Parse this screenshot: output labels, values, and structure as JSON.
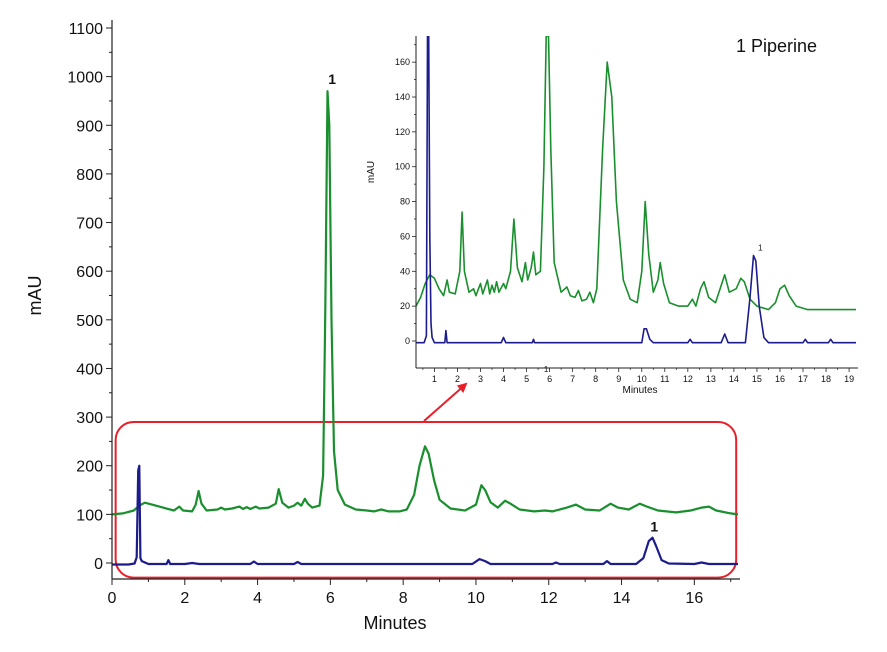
{
  "legend_note": "1 Piperine",
  "chart_data": [
    {
      "type": "line",
      "panel": "main",
      "xlabel": "Minutes",
      "ylabel": "mAU",
      "xlim": [
        0,
        17.2
      ],
      "ylim": [
        -20,
        1100
      ],
      "xticks": [
        0,
        2,
        4,
        6,
        8,
        10,
        12,
        14,
        16
      ],
      "yticks": [
        0,
        100,
        200,
        300,
        400,
        500,
        600,
        700,
        800,
        900,
        1000,
        1100
      ],
      "grid": false,
      "colors": {
        "green": "#1a8f2e",
        "blue": "#1c1c8c",
        "highlight": "#e8202a"
      },
      "highlight_box": {
        "x_range": [
          0.1,
          17.15
        ],
        "y_range": [
          -30,
          290
        ]
      },
      "series": [
        {
          "color": "green",
          "points": [
            [
              0,
              100
            ],
            [
              0.3,
              102
            ],
            [
              0.6,
              108
            ],
            [
              0.75,
              118
            ],
            [
              0.9,
              124
            ],
            [
              1.1,
              120
            ],
            [
              1.4,
              114
            ],
            [
              1.7,
              108
            ],
            [
              1.85,
              116
            ],
            [
              1.95,
              108
            ],
            [
              2.2,
              106
            ],
            [
              2.3,
              120
            ],
            [
              2.38,
              148
            ],
            [
              2.46,
              122
            ],
            [
              2.6,
              108
            ],
            [
              2.9,
              110
            ],
            [
              3.0,
              114
            ],
            [
              3.1,
              110
            ],
            [
              3.3,
              112
            ],
            [
              3.5,
              116
            ],
            [
              3.6,
              111
            ],
            [
              3.7,
              115
            ],
            [
              3.8,
              111
            ],
            [
              3.95,
              116
            ],
            [
              4.05,
              112
            ],
            [
              4.3,
              114
            ],
            [
              4.5,
              122
            ],
            [
              4.58,
              152
            ],
            [
              4.68,
              124
            ],
            [
              4.85,
              114
            ],
            [
              5.0,
              118
            ],
            [
              5.1,
              124
            ],
            [
              5.2,
              118
            ],
            [
              5.3,
              132
            ],
            [
              5.38,
              122
            ],
            [
              5.5,
              114
            ],
            [
              5.7,
              118
            ],
            [
              5.8,
              180
            ],
            [
              5.86,
              520
            ],
            [
              5.92,
              970
            ],
            [
              5.97,
              900
            ],
            [
              6.03,
              500
            ],
            [
              6.1,
              230
            ],
            [
              6.2,
              150
            ],
            [
              6.4,
              120
            ],
            [
              6.7,
              110
            ],
            [
              7.0,
              108
            ],
            [
              7.2,
              106
            ],
            [
              7.4,
              110
            ],
            [
              7.6,
              106
            ],
            [
              7.9,
              106
            ],
            [
              8.1,
              110
            ],
            [
              8.3,
              140
            ],
            [
              8.45,
              200
            ],
            [
              8.6,
              240
            ],
            [
              8.7,
              225
            ],
            [
              8.85,
              170
            ],
            [
              9.0,
              130
            ],
            [
              9.3,
              112
            ],
            [
              9.7,
              108
            ],
            [
              10.0,
              120
            ],
            [
              10.15,
              160
            ],
            [
              10.25,
              150
            ],
            [
              10.4,
              125
            ],
            [
              10.6,
              114
            ],
            [
              10.8,
              128
            ],
            [
              10.95,
              122
            ],
            [
              11.2,
              110
            ],
            [
              11.6,
              106
            ],
            [
              11.9,
              108
            ],
            [
              12.1,
              106
            ],
            [
              12.5,
              114
            ],
            [
              12.75,
              120
            ],
            [
              13.0,
              110
            ],
            [
              13.4,
              108
            ],
            [
              13.7,
              122
            ],
            [
              13.9,
              114
            ],
            [
              14.2,
              110
            ],
            [
              14.5,
              122
            ],
            [
              14.7,
              116
            ],
            [
              15.0,
              108
            ],
            [
              15.5,
              104
            ],
            [
              15.9,
              108
            ],
            [
              16.2,
              114
            ],
            [
              16.4,
              116
            ],
            [
              16.6,
              108
            ],
            [
              17.0,
              102
            ],
            [
              17.2,
              100
            ]
          ]
        },
        {
          "color": "blue",
          "points": [
            [
              0,
              -3
            ],
            [
              0.45,
              -3
            ],
            [
              0.62,
              -1
            ],
            [
              0.68,
              12
            ],
            [
              0.72,
              190
            ],
            [
              0.75,
              200
            ],
            [
              0.78,
              10
            ],
            [
              0.82,
              4
            ],
            [
              1.0,
              -2
            ],
            [
              1.5,
              -2
            ],
            [
              1.55,
              6
            ],
            [
              1.6,
              -2
            ],
            [
              2.0,
              -2
            ],
            [
              2.2,
              0
            ],
            [
              2.4,
              -2
            ],
            [
              3.8,
              -2
            ],
            [
              3.9,
              3
            ],
            [
              4.0,
              -2
            ],
            [
              5.0,
              -2
            ],
            [
              5.1,
              2
            ],
            [
              5.2,
              -2
            ],
            [
              9.9,
              -2
            ],
            [
              10.1,
              8
            ],
            [
              10.25,
              4
            ],
            [
              10.4,
              -2
            ],
            [
              12.1,
              -2
            ],
            [
              12.2,
              1
            ],
            [
              12.3,
              -2
            ],
            [
              13.5,
              -2
            ],
            [
              13.6,
              4
            ],
            [
              13.7,
              -2
            ],
            [
              14.4,
              -2
            ],
            [
              14.6,
              10
            ],
            [
              14.75,
              45
            ],
            [
              14.85,
              52
            ],
            [
              14.95,
              35
            ],
            [
              15.1,
              6
            ],
            [
              15.3,
              -1
            ],
            [
              16.0,
              -2
            ],
            [
              16.2,
              1
            ],
            [
              16.4,
              -2
            ],
            [
              17.2,
              -2
            ]
          ]
        }
      ],
      "annotations": [
        {
          "text": "1",
          "x": 6.05,
          "y": 985
        },
        {
          "text": "1",
          "x": 14.9,
          "y": 65
        }
      ]
    },
    {
      "type": "line",
      "panel": "inset",
      "xlabel": "Minutes",
      "ylabel": "mAU",
      "xlim": [
        0.2,
        19.3
      ],
      "ylim": [
        -12,
        175
      ],
      "xticks": [
        1,
        2,
        3,
        4,
        5,
        6,
        7,
        8,
        9,
        10,
        11,
        12,
        13,
        14,
        15,
        16,
        17,
        18,
        19
      ],
      "yticks": [
        0,
        20,
        40,
        60,
        80,
        100,
        120,
        140,
        160
      ],
      "grid": false,
      "series": [
        {
          "color": "green",
          "points": [
            [
              0.2,
              20
            ],
            [
              0.4,
              25
            ],
            [
              0.6,
              33
            ],
            [
              0.8,
              38
            ],
            [
              1.0,
              36
            ],
            [
              1.2,
              30
            ],
            [
              1.4,
              26
            ],
            [
              1.55,
              35
            ],
            [
              1.65,
              28
            ],
            [
              1.9,
              27
            ],
            [
              2.1,
              40
            ],
            [
              2.2,
              74
            ],
            [
              2.3,
              40
            ],
            [
              2.5,
              28
            ],
            [
              2.7,
              30
            ],
            [
              2.8,
              26
            ],
            [
              3.0,
              33
            ],
            [
              3.1,
              27
            ],
            [
              3.3,
              35
            ],
            [
              3.4,
              27
            ],
            [
              3.5,
              32
            ],
            [
              3.6,
              28
            ],
            [
              3.7,
              34
            ],
            [
              3.8,
              28
            ],
            [
              4.0,
              33
            ],
            [
              4.1,
              30
            ],
            [
              4.3,
              40
            ],
            [
              4.45,
              70
            ],
            [
              4.6,
              42
            ],
            [
              4.8,
              34
            ],
            [
              4.95,
              45
            ],
            [
              5.05,
              35
            ],
            [
              5.2,
              42
            ],
            [
              5.3,
              51
            ],
            [
              5.4,
              38
            ],
            [
              5.6,
              40
            ],
            [
              5.75,
              100
            ],
            [
              5.85,
              175
            ],
            [
              5.95,
              175
            ],
            [
              6.05,
              110
            ],
            [
              6.2,
              45
            ],
            [
              6.5,
              28
            ],
            [
              6.75,
              31
            ],
            [
              6.9,
              26
            ],
            [
              7.1,
              25
            ],
            [
              7.25,
              29
            ],
            [
              7.4,
              23
            ],
            [
              7.6,
              24
            ],
            [
              7.75,
              28
            ],
            [
              7.9,
              22
            ],
            [
              8.05,
              30
            ],
            [
              8.3,
              110
            ],
            [
              8.5,
              160
            ],
            [
              8.7,
              140
            ],
            [
              8.9,
              80
            ],
            [
              9.2,
              35
            ],
            [
              9.5,
              24
            ],
            [
              9.8,
              22
            ],
            [
              10.0,
              40
            ],
            [
              10.15,
              80
            ],
            [
              10.3,
              50
            ],
            [
              10.5,
              28
            ],
            [
              10.7,
              35
            ],
            [
              10.8,
              45
            ],
            [
              10.95,
              33
            ],
            [
              11.2,
              22
            ],
            [
              11.6,
              20
            ],
            [
              12.0,
              20
            ],
            [
              12.2,
              24
            ],
            [
              12.35,
              20
            ],
            [
              12.55,
              30
            ],
            [
              12.7,
              34
            ],
            [
              12.9,
              25
            ],
            [
              13.2,
              22
            ],
            [
              13.5,
              34
            ],
            [
              13.6,
              38
            ],
            [
              13.8,
              28
            ],
            [
              14.1,
              30
            ],
            [
              14.3,
              36
            ],
            [
              14.45,
              34
            ],
            [
              14.7,
              24
            ],
            [
              15.0,
              20
            ],
            [
              15.5,
              18
            ],
            [
              15.8,
              22
            ],
            [
              16.0,
              30
            ],
            [
              16.2,
              32
            ],
            [
              16.4,
              26
            ],
            [
              16.7,
              20
            ],
            [
              17.2,
              18
            ],
            [
              18.0,
              18
            ],
            [
              19.3,
              18
            ]
          ]
        },
        {
          "color": "blue",
          "points": [
            [
              0.2,
              -1
            ],
            [
              0.55,
              -1
            ],
            [
              0.65,
              3
            ],
            [
              0.7,
              175
            ],
            [
              0.75,
              175
            ],
            [
              0.8,
              60
            ],
            [
              0.85,
              10
            ],
            [
              0.9,
              2
            ],
            [
              1.0,
              -1
            ],
            [
              1.45,
              -1
            ],
            [
              1.5,
              6
            ],
            [
              1.55,
              -1
            ],
            [
              3.9,
              -1
            ],
            [
              4.0,
              2
            ],
            [
              4.1,
              -1
            ],
            [
              5.25,
              -1
            ],
            [
              5.3,
              1
            ],
            [
              5.35,
              -1
            ],
            [
              10.0,
              -1
            ],
            [
              10.1,
              7
            ],
            [
              10.2,
              7
            ],
            [
              10.35,
              1
            ],
            [
              10.5,
              -1
            ],
            [
              12.0,
              -1
            ],
            [
              12.1,
              1
            ],
            [
              12.2,
              -1
            ],
            [
              13.45,
              -1
            ],
            [
              13.6,
              4
            ],
            [
              13.75,
              -1
            ],
            [
              14.5,
              -1
            ],
            [
              14.7,
              25
            ],
            [
              14.85,
              49
            ],
            [
              14.95,
              46
            ],
            [
              15.1,
              20
            ],
            [
              15.3,
              2
            ],
            [
              15.5,
              -1
            ],
            [
              17.0,
              -1
            ],
            [
              17.1,
              1
            ],
            [
              17.2,
              -1
            ],
            [
              18.1,
              -1
            ],
            [
              18.2,
              1
            ],
            [
              18.3,
              -1
            ],
            [
              19.3,
              -1
            ]
          ]
        }
      ],
      "annotations": [
        {
          "text": "1",
          "x": 15.15,
          "y": 52
        },
        {
          "text": "1",
          "x": 5.85,
          "y": -12
        }
      ]
    }
  ]
}
